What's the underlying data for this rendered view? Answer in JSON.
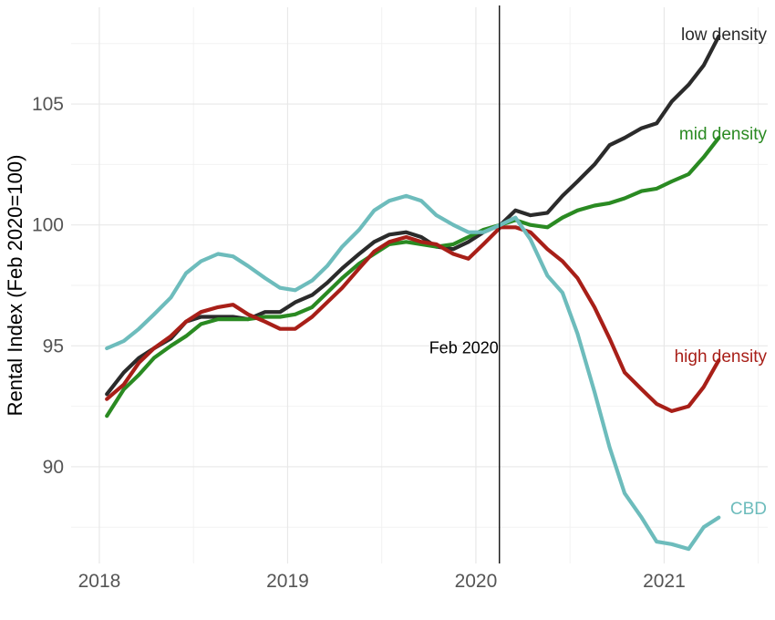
{
  "chart_data": {
    "type": "line",
    "title": "",
    "xlabel": "",
    "ylabel": "Rental Index (Feb 2020=100)",
    "xlim": [
      2017.85,
      2021.55
    ],
    "ylim": [
      86.0,
      109.0
    ],
    "x_ticks": [
      2018,
      2019,
      2020,
      2021
    ],
    "y_ticks": [
      90,
      95,
      100,
      105
    ],
    "x_tick_labels": [
      "2018",
      "2019",
      "2020",
      "2021"
    ],
    "y_tick_labels": [
      "90",
      "95",
      "100",
      "105"
    ],
    "grid": true,
    "legend": "none",
    "annotation": {
      "x": 2020.125,
      "label": "Feb 2020"
    },
    "series": [
      {
        "name": "low density",
        "color": "#2b2b2b",
        "x": [
          2018.04,
          2018.13,
          2018.21,
          2018.29,
          2018.38,
          2018.46,
          2018.54,
          2018.63,
          2018.71,
          2018.79,
          2018.88,
          2018.96,
          2019.04,
          2019.13,
          2019.21,
          2019.29,
          2019.38,
          2019.46,
          2019.54,
          2019.63,
          2019.71,
          2019.79,
          2019.88,
          2019.96,
          2020.04,
          2020.13,
          2020.21,
          2020.29,
          2020.38,
          2020.46,
          2020.54,
          2020.63,
          2020.71,
          2020.79,
          2020.88,
          2020.96,
          2021.04,
          2021.13,
          2021.21,
          2021.29
        ],
        "y": [
          93.0,
          93.9,
          94.5,
          94.9,
          95.3,
          96.0,
          96.2,
          96.2,
          96.2,
          96.1,
          96.4,
          96.4,
          96.8,
          97.1,
          97.6,
          98.2,
          98.8,
          99.3,
          99.6,
          99.7,
          99.5,
          99.1,
          99.0,
          99.3,
          99.7,
          100.0,
          100.6,
          100.4,
          100.5,
          101.2,
          101.8,
          102.5,
          103.3,
          103.6,
          104.0,
          104.2,
          105.1,
          105.8,
          106.6,
          107.8
        ]
      },
      {
        "name": "mid density",
        "color": "#2a8a22",
        "x": [
          2018.04,
          2018.13,
          2018.21,
          2018.29,
          2018.38,
          2018.46,
          2018.54,
          2018.63,
          2018.71,
          2018.79,
          2018.88,
          2018.96,
          2019.04,
          2019.13,
          2019.21,
          2019.29,
          2019.38,
          2019.46,
          2019.54,
          2019.63,
          2019.71,
          2019.79,
          2019.88,
          2019.96,
          2020.04,
          2020.13,
          2020.21,
          2020.29,
          2020.38,
          2020.46,
          2020.54,
          2020.63,
          2020.71,
          2020.79,
          2020.88,
          2020.96,
          2021.04,
          2021.13,
          2021.21,
          2021.29
        ],
        "y": [
          92.1,
          93.2,
          93.8,
          94.5,
          95.0,
          95.4,
          95.9,
          96.1,
          96.1,
          96.1,
          96.2,
          96.2,
          96.3,
          96.6,
          97.2,
          97.8,
          98.4,
          98.8,
          99.2,
          99.3,
          99.2,
          99.1,
          99.2,
          99.5,
          99.8,
          100.0,
          100.2,
          100.0,
          99.9,
          100.3,
          100.6,
          100.8,
          100.9,
          101.1,
          101.4,
          101.5,
          101.8,
          102.1,
          102.8,
          103.6
        ]
      },
      {
        "name": "high density",
        "color": "#a81f18",
        "x": [
          2018.04,
          2018.13,
          2018.21,
          2018.29,
          2018.38,
          2018.46,
          2018.54,
          2018.63,
          2018.71,
          2018.79,
          2018.88,
          2018.96,
          2019.04,
          2019.13,
          2019.21,
          2019.29,
          2019.38,
          2019.46,
          2019.54,
          2019.63,
          2019.71,
          2019.79,
          2019.88,
          2019.96,
          2020.04,
          2020.13,
          2020.21,
          2020.29,
          2020.38,
          2020.46,
          2020.54,
          2020.63,
          2020.71,
          2020.79,
          2020.88,
          2020.96,
          2021.04,
          2021.13,
          2021.21,
          2021.29
        ],
        "y": [
          92.8,
          93.4,
          94.3,
          94.9,
          95.4,
          96.0,
          96.4,
          96.6,
          96.7,
          96.3,
          96.0,
          95.7,
          95.7,
          96.2,
          96.8,
          97.4,
          98.2,
          98.9,
          99.3,
          99.5,
          99.3,
          99.2,
          98.8,
          98.6,
          99.2,
          99.9,
          99.9,
          99.7,
          99.0,
          98.5,
          97.8,
          96.6,
          95.3,
          93.9,
          93.2,
          92.6,
          92.3,
          92.5,
          93.3,
          94.4
        ]
      },
      {
        "name": "CBD",
        "color": "#6dbcbc",
        "x": [
          2018.04,
          2018.13,
          2018.21,
          2018.29,
          2018.38,
          2018.46,
          2018.54,
          2018.63,
          2018.71,
          2018.79,
          2018.88,
          2018.96,
          2019.04,
          2019.13,
          2019.21,
          2019.29,
          2019.38,
          2019.46,
          2019.54,
          2019.63,
          2019.71,
          2019.79,
          2019.88,
          2019.96,
          2020.04,
          2020.13,
          2020.21,
          2020.29,
          2020.38,
          2020.46,
          2020.54,
          2020.63,
          2020.71,
          2020.79,
          2020.88,
          2020.96,
          2021.04,
          2021.13,
          2021.21,
          2021.29
        ],
        "y": [
          94.9,
          95.2,
          95.7,
          96.3,
          97.0,
          98.0,
          98.5,
          98.8,
          98.7,
          98.3,
          97.8,
          97.4,
          97.3,
          97.7,
          98.3,
          99.1,
          99.8,
          100.6,
          101.0,
          101.2,
          101.0,
          100.4,
          100.0,
          99.7,
          99.7,
          100.0,
          100.3,
          99.4,
          97.9,
          97.2,
          95.5,
          93.1,
          90.8,
          88.9,
          87.9,
          86.9,
          86.8,
          86.6,
          87.5,
          87.9
        ]
      }
    ]
  }
}
